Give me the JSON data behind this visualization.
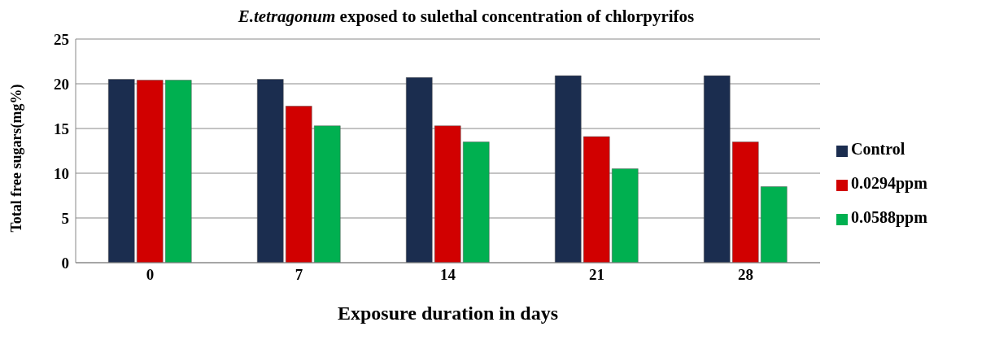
{
  "chart_data": {
    "type": "bar",
    "title": "E.tetragonum exposed to sulethal concentration of chlorpyrifos",
    "xlabel": "Exposure duration in days",
    "ylabel": "Total free sugars(mg%)",
    "categories": [
      "0",
      "7",
      "14",
      "21",
      "28"
    ],
    "series": [
      {
        "name": "Control",
        "color": "#1b2d4f",
        "values": [
          20.5,
          20.5,
          20.7,
          20.9,
          20.9
        ]
      },
      {
        "name": "0.0294ppm",
        "color": "#d10000",
        "values": [
          20.4,
          17.5,
          15.3,
          14.1,
          13.5
        ]
      },
      {
        "name": "0.0588ppm",
        "color": "#00b050",
        "values": [
          20.4,
          15.3,
          13.5,
          10.5,
          8.5
        ]
      }
    ],
    "ylim": [
      0,
      25
    ],
    "yticks": [
      0,
      5,
      10,
      15,
      20,
      25
    ],
    "grid": "y",
    "legend": "right"
  }
}
